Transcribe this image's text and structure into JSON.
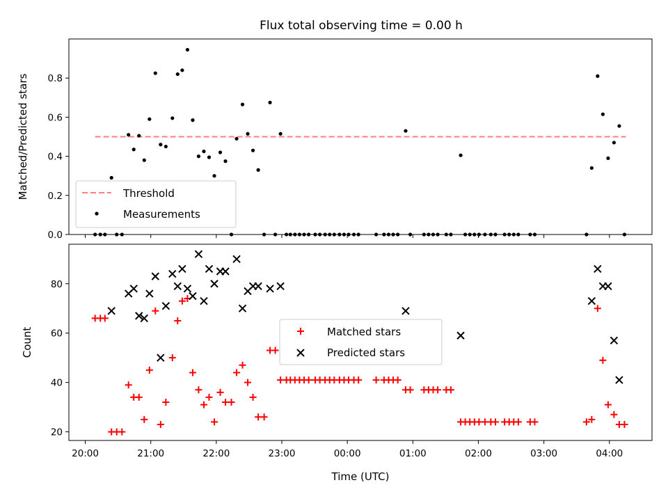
{
  "chart_data": [
    {
      "type": "scatter",
      "title": "Flux total observing time = 0.00 h",
      "xlabel": "",
      "ylabel": "Matched/Predicted stars",
      "ylim": [
        0,
        1.0
      ],
      "yticks": [
        0.0,
        0.2,
        0.4,
        0.6,
        0.8
      ],
      "ytick_labels": [
        "0.0",
        "0.2",
        "0.4",
        "0.6",
        "0.8"
      ],
      "x_unit": "hours since 20:00 UTC",
      "xlim": [
        -0.25,
        8.65
      ],
      "legend": {
        "placement": "lower-left",
        "entries": [
          "Threshold",
          "Measurements"
        ]
      },
      "threshold": {
        "name": "Threshold",
        "value": 0.5,
        "x_range": [
          0.15,
          8.25
        ],
        "color": "#ff7f7f",
        "style": "dashed"
      },
      "series": [
        {
          "name": "Measurements",
          "color": "#000000",
          "points": [
            [
              0.15,
              0.0
            ],
            [
              0.23,
              0.0
            ],
            [
              0.3,
              0.0
            ],
            [
              0.4,
              0.29
            ],
            [
              0.48,
              0.0
            ],
            [
              0.56,
              0.0
            ],
            [
              0.66,
              0.51
            ],
            [
              0.74,
              0.435
            ],
            [
              0.82,
              0.505
            ],
            [
              0.9,
              0.38
            ],
            [
              0.98,
              0.59
            ],
            [
              1.07,
              0.825
            ],
            [
              1.15,
              0.46
            ],
            [
              1.23,
              0.45
            ],
            [
              1.33,
              0.595
            ],
            [
              1.41,
              0.82
            ],
            [
              1.48,
              0.84
            ],
            [
              1.56,
              0.945
            ],
            [
              1.64,
              0.585
            ],
            [
              1.73,
              0.4
            ],
            [
              1.81,
              0.425
            ],
            [
              1.89,
              0.395
            ],
            [
              1.97,
              0.3
            ],
            [
              2.06,
              0.42
            ],
            [
              2.14,
              0.375
            ],
            [
              2.23,
              0.0
            ],
            [
              2.31,
              0.49
            ],
            [
              2.4,
              0.665
            ],
            [
              2.48,
              0.515
            ],
            [
              2.56,
              0.43
            ],
            [
              2.64,
              0.33
            ],
            [
              2.73,
              0.0
            ],
            [
              2.82,
              0.675
            ],
            [
              2.9,
              0.0
            ],
            [
              2.98,
              0.515
            ],
            [
              3.07,
              0.0
            ],
            [
              3.13,
              0.0
            ],
            [
              3.2,
              0.0
            ],
            [
              3.27,
              0.0
            ],
            [
              3.34,
              0.0
            ],
            [
              3.41,
              0.0
            ],
            [
              3.51,
              0.0
            ],
            [
              3.58,
              0.0
            ],
            [
              3.66,
              0.0
            ],
            [
              3.73,
              0.0
            ],
            [
              3.8,
              0.0
            ],
            [
              3.88,
              0.0
            ],
            [
              3.95,
              0.0
            ],
            [
              4.02,
              0.0
            ],
            [
              4.1,
              0.0
            ],
            [
              4.17,
              0.0
            ],
            [
              4.44,
              0.0
            ],
            [
              4.56,
              0.0
            ],
            [
              4.63,
              0.0
            ],
            [
              4.7,
              0.0
            ],
            [
              4.77,
              0.0
            ],
            [
              4.89,
              0.53
            ],
            [
              4.96,
              0.0
            ],
            [
              5.17,
              0.0
            ],
            [
              5.24,
              0.0
            ],
            [
              5.31,
              0.0
            ],
            [
              5.38,
              0.0
            ],
            [
              5.51,
              0.0
            ],
            [
              5.58,
              0.0
            ],
            [
              5.73,
              0.405
            ],
            [
              5.8,
              0.0
            ],
            [
              5.87,
              0.0
            ],
            [
              5.94,
              0.0
            ],
            [
              6.01,
              0.0
            ],
            [
              6.1,
              0.0
            ],
            [
              6.19,
              0.0
            ],
            [
              6.26,
              0.0
            ],
            [
              6.4,
              0.0
            ],
            [
              6.47,
              0.0
            ],
            [
              6.54,
              0.0
            ],
            [
              6.61,
              0.0
            ],
            [
              6.79,
              0.0
            ],
            [
              6.86,
              0.0
            ],
            [
              7.65,
              0.0
            ],
            [
              7.73,
              0.34
            ],
            [
              7.82,
              0.81
            ],
            [
              7.9,
              0.615
            ],
            [
              7.98,
              0.39
            ],
            [
              8.07,
              0.47
            ],
            [
              8.15,
              0.555
            ],
            [
              8.23,
              0.0
            ]
          ]
        }
      ]
    },
    {
      "type": "scatter",
      "title": "",
      "xlabel": "Time (UTC)",
      "ylabel": "Count",
      "ylim": [
        16.5,
        96
      ],
      "yticks": [
        20,
        40,
        60,
        80
      ],
      "ytick_labels": [
        "20",
        "40",
        "60",
        "80"
      ],
      "x_unit": "hours since 20:00 UTC",
      "xlim": [
        -0.25,
        8.65
      ],
      "xticks": [
        0,
        1,
        2,
        3,
        4,
        5,
        6,
        7,
        8
      ],
      "xtick_labels": [
        "20:00",
        "21:00",
        "22:00",
        "23:00",
        "00:00",
        "01:00",
        "02:00",
        "03:00",
        "04:00"
      ],
      "legend": {
        "placement": "center",
        "entries": [
          "Matched stars",
          "Predicted stars"
        ]
      },
      "series": [
        {
          "name": "Matched stars",
          "marker": "plus",
          "color": "#ff0000",
          "points": [
            [
              0.15,
              66
            ],
            [
              0.23,
              66
            ],
            [
              0.3,
              66
            ],
            [
              0.4,
              20
            ],
            [
              0.48,
              20
            ],
            [
              0.56,
              20
            ],
            [
              0.66,
              39
            ],
            [
              0.74,
              34
            ],
            [
              0.82,
              34
            ],
            [
              0.9,
              25
            ],
            [
              0.98,
              45
            ],
            [
              1.07,
              69
            ],
            [
              1.15,
              23
            ],
            [
              1.23,
              32
            ],
            [
              1.33,
              50
            ],
            [
              1.41,
              65
            ],
            [
              1.48,
              73
            ],
            [
              1.56,
              74
            ],
            [
              1.64,
              44
            ],
            [
              1.73,
              37
            ],
            [
              1.81,
              31
            ],
            [
              1.89,
              34
            ],
            [
              1.97,
              24
            ],
            [
              2.06,
              36
            ],
            [
              2.14,
              32
            ],
            [
              2.23,
              32
            ],
            [
              2.31,
              44
            ],
            [
              2.4,
              47
            ],
            [
              2.48,
              40
            ],
            [
              2.56,
              34
            ],
            [
              2.64,
              26
            ],
            [
              2.73,
              26
            ],
            [
              2.82,
              53
            ],
            [
              2.9,
              53
            ],
            [
              2.98,
              41
            ],
            [
              3.07,
              41
            ],
            [
              3.13,
              41
            ],
            [
              3.2,
              41
            ],
            [
              3.27,
              41
            ],
            [
              3.34,
              41
            ],
            [
              3.41,
              41
            ],
            [
              3.51,
              41
            ],
            [
              3.58,
              41
            ],
            [
              3.66,
              41
            ],
            [
              3.73,
              41
            ],
            [
              3.8,
              41
            ],
            [
              3.88,
              41
            ],
            [
              3.95,
              41
            ],
            [
              4.02,
              41
            ],
            [
              4.1,
              41
            ],
            [
              4.17,
              41
            ],
            [
              4.44,
              41
            ],
            [
              4.56,
              41
            ],
            [
              4.63,
              41
            ],
            [
              4.7,
              41
            ],
            [
              4.77,
              41
            ],
            [
              4.89,
              37
            ],
            [
              4.96,
              37
            ],
            [
              5.17,
              37
            ],
            [
              5.24,
              37
            ],
            [
              5.31,
              37
            ],
            [
              5.38,
              37
            ],
            [
              5.51,
              37
            ],
            [
              5.58,
              37
            ],
            [
              5.73,
              24
            ],
            [
              5.8,
              24
            ],
            [
              5.87,
              24
            ],
            [
              5.94,
              24
            ],
            [
              6.01,
              24
            ],
            [
              6.1,
              24
            ],
            [
              6.19,
              24
            ],
            [
              6.26,
              24
            ],
            [
              6.4,
              24
            ],
            [
              6.47,
              24
            ],
            [
              6.54,
              24
            ],
            [
              6.61,
              24
            ],
            [
              6.79,
              24
            ],
            [
              6.86,
              24
            ],
            [
              7.65,
              24
            ],
            [
              7.73,
              25
            ],
            [
              7.82,
              70
            ],
            [
              7.9,
              49
            ],
            [
              7.98,
              31
            ],
            [
              8.07,
              27
            ],
            [
              8.15,
              23
            ],
            [
              8.23,
              23
            ]
          ]
        },
        {
          "name": "Predicted stars",
          "marker": "x",
          "color": "#000000",
          "points": [
            [
              0.4,
              69
            ],
            [
              0.66,
              76
            ],
            [
              0.74,
              78
            ],
            [
              0.82,
              67
            ],
            [
              0.9,
              66
            ],
            [
              0.98,
              76
            ],
            [
              1.07,
              83
            ],
            [
              1.15,
              50
            ],
            [
              1.23,
              71
            ],
            [
              1.33,
              84
            ],
            [
              1.41,
              79
            ],
            [
              1.48,
              86
            ],
            [
              1.56,
              78
            ],
            [
              1.64,
              75
            ],
            [
              1.73,
              92
            ],
            [
              1.81,
              73
            ],
            [
              1.89,
              86
            ],
            [
              1.97,
              80
            ],
            [
              2.06,
              85
            ],
            [
              2.14,
              85
            ],
            [
              2.31,
              90
            ],
            [
              2.4,
              70
            ],
            [
              2.48,
              77
            ],
            [
              2.56,
              79
            ],
            [
              2.64,
              79
            ],
            [
              2.82,
              78
            ],
            [
              2.98,
              79
            ],
            [
              4.89,
              69
            ],
            [
              5.73,
              59
            ],
            [
              7.73,
              73
            ],
            [
              7.82,
              86
            ],
            [
              7.9,
              79
            ],
            [
              7.98,
              79
            ],
            [
              8.07,
              57
            ],
            [
              8.15,
              41
            ]
          ]
        }
      ]
    }
  ]
}
